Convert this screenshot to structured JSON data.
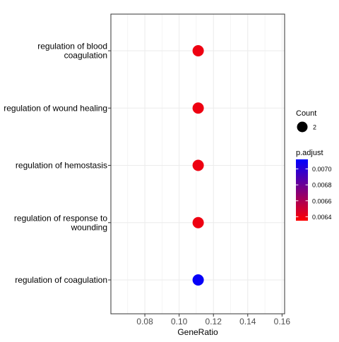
{
  "chart_data": {
    "type": "scatter",
    "xlabel": "GeneRatio",
    "ylabel": "",
    "xlim": [
      0.0602,
      0.1615
    ],
    "x_ticks": [
      0.08,
      0.1,
      0.12,
      0.14,
      0.16
    ],
    "x_tick_labels": [
      "0.08",
      "0.10",
      "0.12",
      "0.14",
      "0.16"
    ],
    "grid": true,
    "legend_placement": "right",
    "categories": [
      "regulation of blood\ncoagulation",
      "regulation of wound healing",
      "regulation of hemostasis",
      "regulation of response to\nwounding",
      "regulation of coagulation"
    ],
    "points": [
      {
        "term": "regulation of blood coagulation",
        "gene_ratio": 0.1111,
        "count": 2,
        "p_adjust": 0.0064
      },
      {
        "term": "regulation of wound healing",
        "gene_ratio": 0.1111,
        "count": 2,
        "p_adjust": 0.0064
      },
      {
        "term": "regulation of hemostasis",
        "gene_ratio": 0.1111,
        "count": 2,
        "p_adjust": 0.0064
      },
      {
        "term": "regulation of response to wounding",
        "gene_ratio": 0.1111,
        "count": 2,
        "p_adjust": 0.0064
      },
      {
        "term": "regulation of coagulation",
        "gene_ratio": 0.1111,
        "count": 2,
        "p_adjust": 0.0071
      }
    ],
    "size_legend": {
      "title": "Count",
      "entries": [
        {
          "label": "2",
          "value": 2
        }
      ]
    },
    "color_legend": {
      "title": "p.adjust",
      "range": [
        0.00635,
        0.00712
      ],
      "ticks": [
        0.0064,
        0.0066,
        0.0068,
        0.007
      ],
      "tick_labels": [
        "0.0064",
        "0.0066",
        "0.0068",
        "0.0070"
      ],
      "low_color": "#ff0000",
      "high_color": "#0000ff"
    },
    "colors": {
      "panel_border": "#333333",
      "grid": "#ebebeb",
      "size_key": "#000000"
    }
  }
}
